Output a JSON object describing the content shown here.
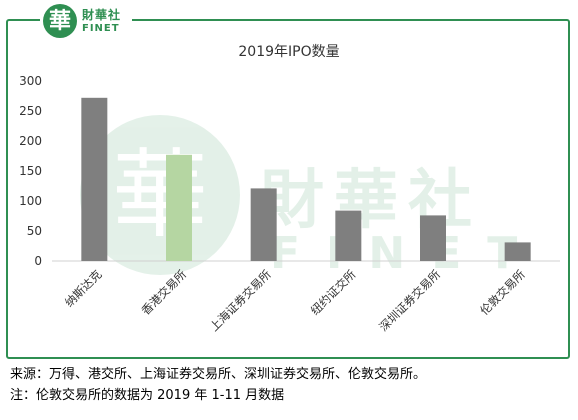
{
  "logo": {
    "mark": "華",
    "name_cn": "財華社",
    "name_en": "FINET"
  },
  "watermark": {
    "mark": "華",
    "name_cn": "財華社",
    "name_en": "FINET"
  },
  "chart_data": {
    "type": "bar",
    "title": "2019年IPO数量",
    "categories": [
      "纳斯达克",
      "香港交易所",
      "上海证券交易所",
      "纽约证交所",
      "深圳证券交易所",
      "伦敦交易所"
    ],
    "values": [
      272,
      177,
      121,
      84,
      76,
      31
    ],
    "ylim": [
      0,
      300
    ],
    "yticks": [
      0,
      50,
      100,
      150,
      200,
      250,
      300
    ],
    "grid": false,
    "legend": "none",
    "colors": {
      "default_bar": "#7f7f7f",
      "highlight_bar": "#b5d6a2",
      "highlight_index": 1,
      "frame": "#2f8f52"
    }
  },
  "notes": {
    "source": "来源：万得、港交所、上海证券交易所、深圳证券交易所、伦敦交易所。",
    "note": "注：伦敦交易所的数据为 2019 年 1-11 月数据"
  }
}
